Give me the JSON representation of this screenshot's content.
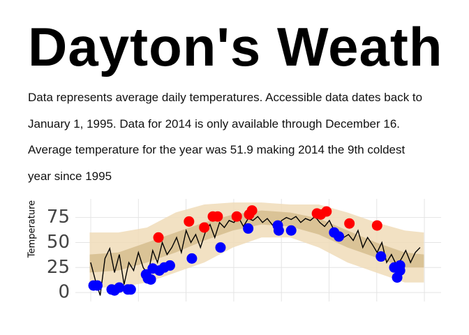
{
  "header": {
    "title": "Dayton's Weath",
    "description": [
      "Data represents average daily temperatures. Accessible data dates back to",
      "January 1, 1995. Data for 2014 is only available through December 16.",
      "Average temperature for the year was 51.9 making 2014 the 9th coldest",
      "year since 1995"
    ]
  },
  "chart_data": {
    "type": "line",
    "y_label": "Temperature",
    "xlim": [
      -15,
      368
    ],
    "ylim": [
      -9,
      88
    ],
    "yticks": [
      0,
      25,
      50,
      75
    ],
    "grid": true,
    "bands": [
      {
        "color": "#f0dcb8",
        "x": [
          0,
          30,
          60,
          90,
          120,
          150,
          180,
          210,
          240,
          270,
          300,
          330,
          350
        ],
        "low": [
          5,
          5,
          10,
          20,
          30,
          45,
          55,
          55,
          45,
          30,
          20,
          10,
          10
        ],
        "high": [
          60,
          60,
          65,
          80,
          88,
          90,
          90,
          88,
          88,
          80,
          70,
          62,
          60
        ]
      },
      {
        "color": "#d6bd8e",
        "x": [
          0,
          30,
          60,
          90,
          120,
          150,
          180,
          210,
          240,
          270,
          300,
          330,
          350
        ],
        "low": [
          20,
          22,
          30,
          40,
          52,
          62,
          68,
          66,
          58,
          45,
          35,
          25,
          25
        ],
        "high": [
          38,
          40,
          50,
          60,
          70,
          78,
          82,
          80,
          74,
          62,
          50,
          40,
          38
        ]
      }
    ],
    "line": {
      "color": "#000000",
      "x": [
        1,
        6,
        11,
        16,
        21,
        26,
        31,
        36,
        41,
        46,
        51,
        56,
        61,
        66,
        71,
        76,
        81,
        86,
        91,
        96,
        101,
        106,
        111,
        116,
        121,
        126,
        131,
        136,
        141,
        146,
        151,
        156,
        161,
        166,
        171,
        176,
        181,
        186,
        191,
        196,
        201,
        206,
        211,
        216,
        221,
        226,
        231,
        236,
        241,
        246,
        251,
        256,
        261,
        266,
        271,
        276,
        281,
        286,
        291,
        296,
        301,
        306,
        311,
        316,
        321,
        326,
        331,
        336,
        341,
        346
      ],
      "values": [
        30,
        12,
        -3,
        34,
        44,
        20,
        38,
        8,
        30,
        22,
        40,
        25,
        18,
        42,
        30,
        50,
        38,
        45,
        55,
        40,
        62,
        50,
        58,
        45,
        60,
        68,
        55,
        70,
        65,
        72,
        70,
        75,
        66,
        74,
        72,
        76,
        70,
        74,
        68,
        62,
        72,
        75,
        73,
        76,
        70,
        74,
        72,
        76,
        70,
        66,
        72,
        62,
        60,
        55,
        58,
        52,
        62,
        45,
        55,
        48,
        40,
        50,
        30,
        38,
        28,
        33,
        42,
        30,
        40,
        45
      ]
    },
    "points": [
      {
        "color": "#ff0000",
        "x": [
          72,
          104,
          120,
          129,
          134,
          154,
          167,
          170,
          238,
          242,
          248,
          272,
          301
        ],
        "values": [
          55,
          71,
          65,
          76,
          76,
          76,
          78,
          82,
          79,
          78,
          81,
          69,
          67
        ]
      },
      {
        "color": "#0000ff",
        "x": [
          4,
          8,
          23,
          26,
          31,
          40,
          43,
          59,
          61,
          64,
          66,
          73,
          78,
          84,
          107,
          137,
          166,
          197,
          198,
          211,
          256,
          261,
          305,
          319,
          322,
          325,
          325
        ],
        "values": [
          7,
          7,
          3,
          2,
          5,
          3,
          3,
          18,
          14,
          13,
          24,
          22,
          25,
          27,
          34,
          45,
          64,
          67,
          62,
          62,
          60,
          56,
          36,
          25,
          15,
          22,
          27
        ]
      }
    ]
  }
}
